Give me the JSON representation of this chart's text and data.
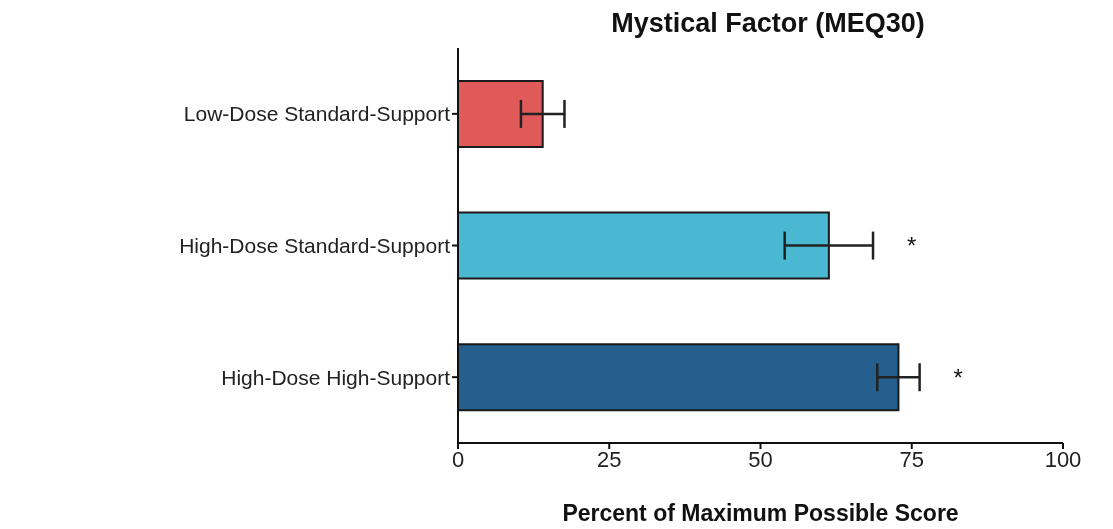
{
  "chart_data": {
    "type": "bar",
    "orientation": "horizontal",
    "title": "Mystical Factor (MEQ30)",
    "xlabel": "Percent of Maximum Possible Score",
    "categories": [
      "Low-Dose Standard-Support",
      "High-Dose Standard-Support",
      "High-Dose High-Support"
    ],
    "values": [
      14.0,
      61.3,
      72.8
    ],
    "errors": [
      3.6,
      7.3,
      3.5
    ],
    "colors": [
      "#e05a5a",
      "#4ab8d1",
      "#245f8e"
    ],
    "xlim": [
      0,
      100
    ],
    "xticks": [
      0,
      25,
      50,
      75,
      100
    ],
    "grid": false,
    "legend": false,
    "annotations": [
      "*",
      "*"
    ]
  }
}
